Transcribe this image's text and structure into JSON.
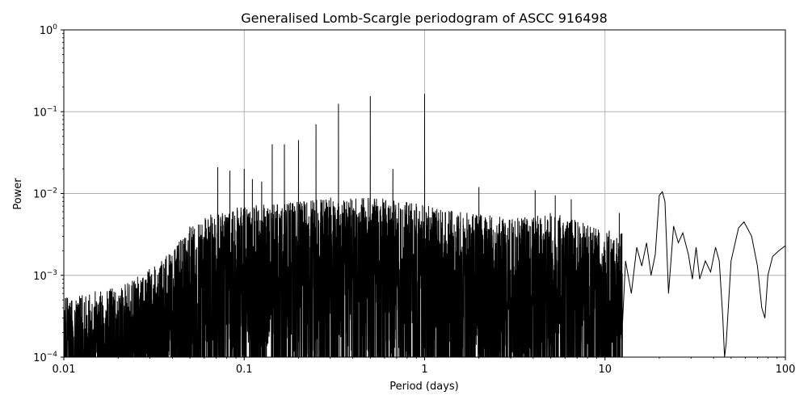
{
  "chart_data": {
    "type": "line",
    "title": "Generalised Lomb-Scargle periodogram of ASCC 916498",
    "xlabel": "Period (days)",
    "ylabel": "Power",
    "xscale": "log",
    "yscale": "log",
    "xlim": [
      0.01,
      100
    ],
    "ylim": [
      0.0001,
      1
    ],
    "grid": true,
    "x_ticks": [
      {
        "value": 0.01,
        "label": "0.01"
      },
      {
        "value": 0.1,
        "label": "0.1"
      },
      {
        "value": 1,
        "label": "1"
      },
      {
        "value": 10,
        "label": "10"
      },
      {
        "value": 100,
        "label": "100"
      }
    ],
    "y_ticks": [
      {
        "value": 0.0001,
        "base": "10",
        "exp": "−4"
      },
      {
        "value": 0.001,
        "base": "10",
        "exp": "−3"
      },
      {
        "value": 0.01,
        "base": "10",
        "exp": "−2"
      },
      {
        "value": 0.1,
        "base": "10",
        "exp": "−1"
      },
      {
        "value": 1,
        "base": "10",
        "exp": "0"
      }
    ],
    "series": [
      {
        "color": "#000000",
        "peaks": [
          {
            "x": 0.0713,
            "y": 0.021
          },
          {
            "x": 0.0833,
            "y": 0.019
          },
          {
            "x": 0.1,
            "y": 0.02
          },
          {
            "x": 0.111,
            "y": 0.015
          },
          {
            "x": 0.125,
            "y": 0.014
          },
          {
            "x": 0.143,
            "y": 0.04
          },
          {
            "x": 0.167,
            "y": 0.04
          },
          {
            "x": 0.2,
            "y": 0.045
          },
          {
            "x": 0.25,
            "y": 0.07
          },
          {
            "x": 0.333,
            "y": 0.125
          },
          {
            "x": 0.5,
            "y": 0.155
          },
          {
            "x": 0.667,
            "y": 0.02
          },
          {
            "x": 1.0,
            "y": 0.165
          },
          {
            "x": 2.0,
            "y": 0.012
          },
          {
            "x": 4.1,
            "y": 0.011
          },
          {
            "x": 5.3,
            "y": 0.0095
          },
          {
            "x": 6.5,
            "y": 0.0085
          },
          {
            "x": 12.0,
            "y": 0.0058
          },
          {
            "x": 20.5,
            "y": 0.0105
          }
        ],
        "envelope": [
          {
            "x": 0.01,
            "y": 0.0005
          },
          {
            "x": 0.02,
            "y": 0.0007
          },
          {
            "x": 0.03,
            "y": 0.0012
          },
          {
            "x": 0.04,
            "y": 0.002
          },
          {
            "x": 0.05,
            "y": 0.004
          },
          {
            "x": 0.07,
            "y": 0.006
          },
          {
            "x": 0.1,
            "y": 0.007
          },
          {
            "x": 0.2,
            "y": 0.008
          },
          {
            "x": 0.3,
            "y": 0.009
          },
          {
            "x": 0.5,
            "y": 0.009
          },
          {
            "x": 0.8,
            "y": 0.008
          },
          {
            "x": 1.5,
            "y": 0.006
          },
          {
            "x": 3.0,
            "y": 0.005
          },
          {
            "x": 5.0,
            "y": 0.006
          },
          {
            "x": 10.0,
            "y": 0.0035
          }
        ],
        "tail": [
          [
            13.0,
            0.0015
          ],
          [
            14.0,
            0.0006
          ],
          [
            15.0,
            0.0022
          ],
          [
            16.0,
            0.0013
          ],
          [
            17.0,
            0.0025
          ],
          [
            18.0,
            0.001
          ],
          [
            19.0,
            0.0018
          ],
          [
            20.0,
            0.0095
          ],
          [
            20.8,
            0.0105
          ],
          [
            21.5,
            0.008
          ],
          [
            22.5,
            0.0006
          ],
          [
            24.0,
            0.004
          ],
          [
            25.5,
            0.0025
          ],
          [
            27.0,
            0.0033
          ],
          [
            29.0,
            0.0018
          ],
          [
            30.5,
            0.0009
          ],
          [
            32.0,
            0.0022
          ],
          [
            33.5,
            0.0009
          ],
          [
            36.0,
            0.0015
          ],
          [
            38.5,
            0.0011
          ],
          [
            41.0,
            0.0022
          ],
          [
            43.0,
            0.0015
          ],
          [
            45.0,
            0.0003
          ],
          [
            46.0,
            0.0001
          ],
          [
            47.0,
            0.00015
          ],
          [
            50.0,
            0.0015
          ],
          [
            55.0,
            0.0038
          ],
          [
            59.0,
            0.0045
          ],
          [
            65.0,
            0.003
          ],
          [
            70.0,
            0.0013
          ],
          [
            74.0,
            0.0004
          ],
          [
            77.0,
            0.0003
          ],
          [
            80.0,
            0.001
          ],
          [
            85.0,
            0.0017
          ],
          [
            92.0,
            0.002
          ],
          [
            100.0,
            0.0023
          ]
        ]
      }
    ]
  }
}
